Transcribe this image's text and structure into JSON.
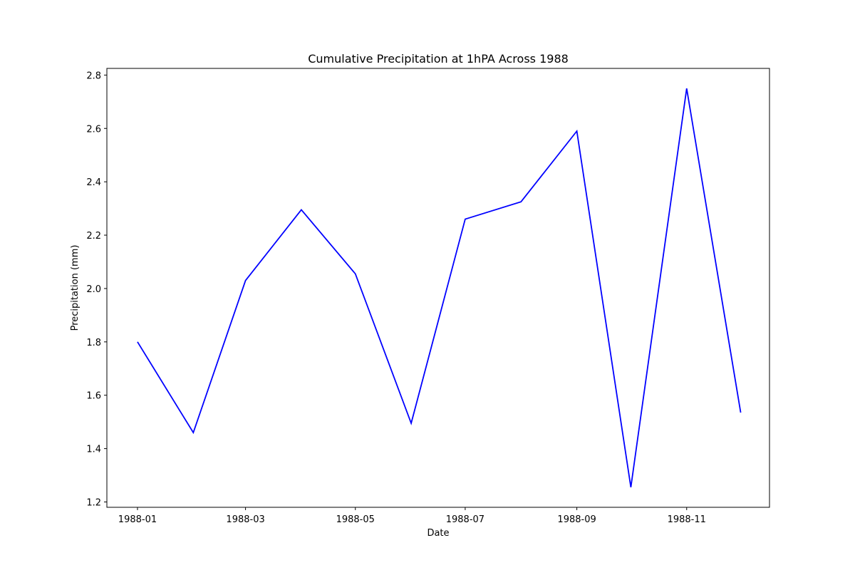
{
  "chart_data": {
    "type": "line",
    "title": "Cumulative Precipitation at 1hPA Across 1988",
    "xlabel": "Date",
    "ylabel": "Precipitation (mm)",
    "x": [
      "1988-01-01",
      "1988-02-01",
      "1988-03-01",
      "1988-04-01",
      "1988-05-01",
      "1988-06-01",
      "1988-07-01",
      "1988-08-01",
      "1988-09-01",
      "1988-10-01",
      "1988-11-01",
      "1988-12-01"
    ],
    "series": [
      {
        "values": [
          1.8,
          1.46,
          2.03,
          2.295,
          2.055,
          1.495,
          2.26,
          2.325,
          2.59,
          1.255,
          2.75,
          1.535
        ]
      }
    ],
    "xlim": [
      "1987-12-15",
      "1988-12-17"
    ],
    "ylim": [
      1.18,
      2.825
    ],
    "xticks": [
      "1988-01",
      "1988-03",
      "1988-05",
      "1988-07",
      "1988-09",
      "1988-11"
    ],
    "yticks": [
      "1.2",
      "1.4",
      "1.6",
      "1.8",
      "2.0",
      "2.2",
      "2.4",
      "2.6",
      "2.8"
    ],
    "grid": false,
    "colors": {
      "line": "#0000ff",
      "axes": "#000000"
    }
  }
}
